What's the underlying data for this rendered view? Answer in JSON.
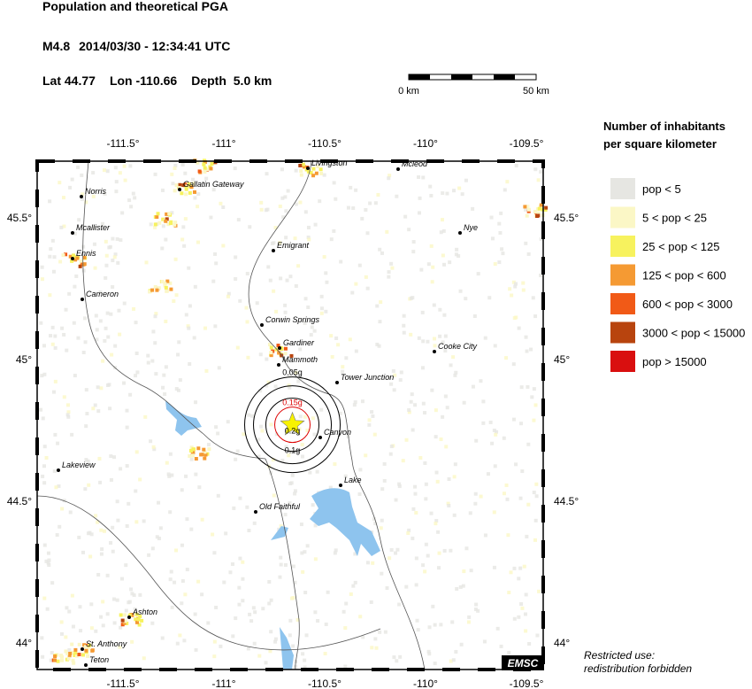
{
  "header": {
    "title": "Population and theoretical PGA",
    "magnitude": "M4.8",
    "datetime": "2014/03/30 - 12:34:41 UTC",
    "lat_label": "Lat",
    "lat": 44.77,
    "lon_label": "Lon",
    "lon": -110.66,
    "depth_label": "Depth",
    "depth": "5.0 km"
  },
  "scale_bar": {
    "start": "0 km",
    "end": "50 km"
  },
  "map": {
    "lon_ticks": [
      {
        "value": -111.5,
        "label": "-111.5°"
      },
      {
        "value": -111,
        "label": "-111°"
      },
      {
        "value": -110.5,
        "label": "-110.5°"
      },
      {
        "value": -110,
        "label": "-110°"
      },
      {
        "value": -109.5,
        "label": "-109.5°"
      }
    ],
    "lat_ticks": [
      {
        "value": 45.5,
        "label": "45.5°"
      },
      {
        "value": 45,
        "label": "45°"
      },
      {
        "value": 44.5,
        "label": "44.5°"
      },
      {
        "value": 44,
        "label": "44°"
      }
    ],
    "towns": [
      "Livingston",
      "Mcleod",
      "Norris",
      "Gallatin Gateway",
      "Mcallister",
      "Nye",
      "Ennis",
      "Emigrant",
      "Cameron",
      "Corwin Springs",
      "Gardiner",
      "Mammoth",
      "Cooke City",
      "Tower Junction",
      "Canyon",
      "Lakeview",
      "Lake",
      "Old Faithful",
      "Ashton",
      "St. Anthony",
      "Teton"
    ],
    "pga_contours": [
      "0.05g",
      "0.1g",
      "0.15g",
      "0.2g"
    ],
    "badge": "EMSC"
  },
  "legend": {
    "title_lines": [
      "Number of inhabitants",
      "per square kilometer"
    ],
    "items": [
      {
        "label": "pop < 5",
        "color": "#e6e6e2"
      },
      {
        "label": "5 < pop < 25",
        "color": "#fbf7c6"
      },
      {
        "label": "25 < pop < 125",
        "color": "#f7f25e"
      },
      {
        "label": "125 < pop < 600",
        "color": "#f59a33"
      },
      {
        "label": "600 < pop < 3000",
        "color": "#f15a17"
      },
      {
        "label": "3000 < pop < 15000",
        "color": "#b8440e"
      },
      {
        "label": "pop > 15000",
        "color": "#d90f0f"
      }
    ]
  },
  "notice": [
    "Restricted use:",
    "redistribution forbidden"
  ]
}
